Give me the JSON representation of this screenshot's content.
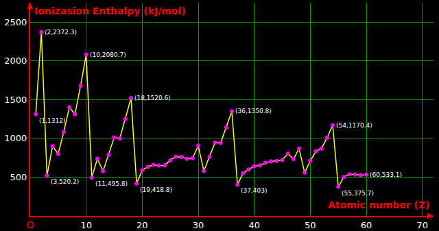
{
  "chart_data": {
    "type": "line",
    "x_label": "Atomic number (Z)",
    "y_label": "Ionizasion Enthalpy (kJ/mol)",
    "x": [
      1,
      2,
      3,
      4,
      5,
      6,
      7,
      8,
      9,
      10,
      11,
      12,
      13,
      14,
      15,
      16,
      17,
      18,
      19,
      20,
      21,
      22,
      23,
      24,
      25,
      26,
      27,
      28,
      29,
      30,
      31,
      32,
      33,
      34,
      35,
      36,
      37,
      38,
      39,
      40,
      41,
      42,
      43,
      44,
      45,
      46,
      47,
      48,
      49,
      50,
      51,
      52,
      53,
      54,
      55,
      56,
      57,
      58,
      59,
      60
    ],
    "values": [
      1312,
      2372.3,
      520.2,
      899.5,
      800.6,
      1086.5,
      1402.3,
      1313.9,
      1681,
      2080.7,
      495.8,
      737.7,
      577.5,
      786.5,
      1011.8,
      999.6,
      1251.2,
      1520.6,
      418.8,
      589.8,
      633.1,
      658.8,
      650.9,
      652.9,
      717.3,
      762.5,
      760.4,
      737.1,
      745.5,
      906.4,
      578.8,
      762,
      947,
      941,
      1139.9,
      1350.8,
      403,
      549.5,
      600,
      640.1,
      652.1,
      684.3,
      702,
      710.2,
      719.7,
      804.4,
      731,
      867.8,
      558.3,
      708.6,
      834,
      869.3,
      1008.4,
      1170.4,
      375.7,
      502.9,
      538.1,
      534.4,
      527,
      533.1
    ],
    "color": "#ffff00",
    "marker": "circle",
    "xlim": [
      0,
      72
    ],
    "ylim": [
      0,
      2750
    ],
    "xticks": [
      {
        "value": 0,
        "label": "O"
      },
      10,
      20,
      30,
      40,
      50,
      60,
      70
    ],
    "yticks": [
      500,
      1000,
      1500,
      2000,
      2500
    ],
    "grid": true,
    "annotations": [
      {
        "text": "(1,1312)",
        "x": 1,
        "y": 1312
      },
      {
        "text": "(2,2372.3)",
        "x": 2,
        "y": 2372.3
      },
      {
        "text": "(3,520.2)",
        "x": 3,
        "y": 520.2
      },
      {
        "text": "(10,2080.7)",
        "x": 10,
        "y": 2080.7
      },
      {
        "text": "(11,495.8)",
        "x": 11,
        "y": 495.8
      },
      {
        "text": "(18,1520.6)",
        "x": 18,
        "y": 1520.6
      },
      {
        "text": "(19,418.8)",
        "x": 19,
        "y": 418.8
      },
      {
        "text": "(36,1350.8)",
        "x": 36,
        "y": 1350.8
      },
      {
        "text": "(37,403)",
        "x": 37,
        "y": 403
      },
      {
        "text": "(54,1170.4)",
        "x": 54,
        "y": 1170.4
      },
      {
        "text": "(55,375.7)",
        "x": 55,
        "y": 375.7
      },
      {
        "text": "(60,533.1)",
        "x": 60,
        "y": 533.1
      }
    ]
  }
}
